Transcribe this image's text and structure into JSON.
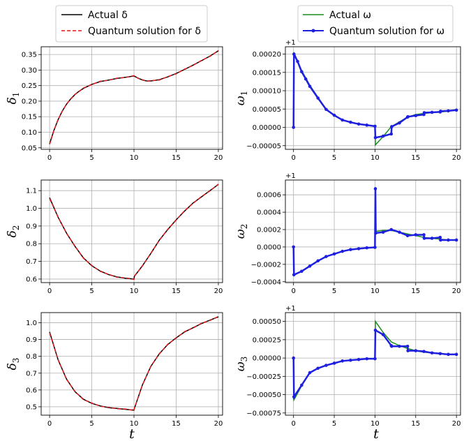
{
  "legends": {
    "left": [
      {
        "label": "Actual δ",
        "color": "#000000",
        "style": "solid"
      },
      {
        "label": "Quantum solution for δ",
        "color": "#e41a1c",
        "style": "dashed"
      }
    ],
    "right": [
      {
        "label": "Actual ω",
        "color": "#1a8c1a",
        "style": "solid"
      },
      {
        "label": "Quantum solution for ω",
        "color": "#1f1fe0",
        "style": "dots"
      }
    ]
  },
  "xlabel": "t",
  "chart_data": [
    {
      "type": "line",
      "ylabel": "δ",
      "ylabel_sub": "1",
      "xlim": [
        -1,
        20.5
      ],
      "ylim": [
        0.045,
        0.375
      ],
      "xticks": [
        0,
        5,
        10,
        15,
        20
      ],
      "xtick_labels": [
        "0",
        "5",
        "10",
        "15",
        "20"
      ],
      "yticks": [
        0.05,
        0.1,
        0.15,
        0.2,
        0.25,
        0.3,
        0.35
      ],
      "ytick_labels": [
        "0.05",
        "0.10",
        "0.15",
        "0.20",
        "0.25",
        "0.30",
        "0.35"
      ],
      "offset_text": "",
      "series": [
        {
          "name": "Actual δ",
          "color": "#000000",
          "x": [
            0,
            0.5,
            1,
            1.5,
            2,
            2.5,
            3,
            3.5,
            4,
            5,
            6,
            7,
            8,
            9,
            10,
            10.5,
            11,
            11.5,
            12,
            13,
            14,
            15,
            16,
            17,
            18,
            19,
            20
          ],
          "y": [
            0.063,
            0.105,
            0.14,
            0.168,
            0.19,
            0.207,
            0.221,
            0.232,
            0.241,
            0.254,
            0.263,
            0.268,
            0.273,
            0.277,
            0.281,
            0.274,
            0.268,
            0.265,
            0.265,
            0.269,
            0.278,
            0.289,
            0.302,
            0.316,
            0.33,
            0.345,
            0.362
          ]
        },
        {
          "name": "Quantum solution for δ",
          "color": "#e41a1c",
          "x": [
            0,
            0.5,
            1,
            1.5,
            2,
            2.5,
            3,
            3.5,
            4,
            5,
            6,
            7,
            8,
            9,
            10,
            10.5,
            11,
            11.5,
            12,
            13,
            14,
            15,
            16,
            17,
            18,
            19,
            20
          ],
          "y": [
            0.061,
            0.104,
            0.141,
            0.167,
            0.191,
            0.206,
            0.222,
            0.231,
            0.242,
            0.253,
            0.264,
            0.267,
            0.274,
            0.276,
            0.282,
            0.273,
            0.269,
            0.264,
            0.266,
            0.268,
            0.279,
            0.288,
            0.303,
            0.315,
            0.331,
            0.344,
            0.363
          ]
        }
      ]
    },
    {
      "type": "line",
      "ylabel": "ω",
      "ylabel_sub": "1",
      "xlim": [
        -1,
        20.5
      ],
      "ylim": [
        -6e-05,
        0.00022
      ],
      "xticks": [
        0,
        5,
        10,
        15,
        20
      ],
      "xtick_labels": [
        "0",
        "5",
        "10",
        "15",
        "20"
      ],
      "yticks": [
        -5e-05,
        0,
        5e-05,
        0.0001,
        0.00015,
        0.0002
      ],
      "ytick_labels": [
        "−0.00005",
        "0.00000",
        "0.00005",
        "0.00010",
        "0.00015",
        "0.00020"
      ],
      "offset_text": "+1",
      "series": [
        {
          "name": "Actual ω",
          "color": "#1a8c1a",
          "x": [
            0,
            0.05,
            0.5,
            1,
            1.5,
            2,
            3,
            4,
            5,
            6,
            7,
            8,
            9,
            10,
            10.05,
            11,
            12,
            13,
            14,
            15,
            16,
            17,
            18,
            19,
            20
          ],
          "y": [
            0,
            0.000205,
            0.00018,
            0.000155,
            0.000135,
            0.000115,
            8.2e-05,
            5e-05,
            3.4e-05,
            2e-05,
            1.4e-05,
            9e-06,
            6e-06,
            4e-06,
            -4.8e-05,
            -2.5e-05,
            2e-06,
            1.5e-05,
            2.8e-05,
            3.5e-05,
            3.8e-05,
            4e-05,
            4.2e-05,
            4.4e-05,
            4.8e-05
          ]
        },
        {
          "name": "Quantum solution for ω",
          "color": "#1f1fe0",
          "x": [
            0,
            0.05,
            0.5,
            1,
            1.5,
            2,
            3,
            4,
            5,
            6,
            7,
            8,
            9,
            10,
            10.05,
            11,
            12,
            12.05,
            13,
            14,
            14.05,
            15,
            16,
            16.05,
            17,
            18,
            18.05,
            19,
            20
          ],
          "y": [
            0,
            0.0002,
            0.00018,
            0.000152,
            0.000132,
            0.000112,
            8e-05,
            4.9e-05,
            3.3e-05,
            2e-05,
            1.4e-05,
            9e-06,
            6e-06,
            3e-06,
            -2.8e-05,
            -2.4e-05,
            -1.8e-05,
            2e-06,
            1.2e-05,
            2.8e-05,
            2.9e-05,
            3.2e-05,
            3.5e-05,
            4e-05,
            4.1e-05,
            4.2e-05,
            4.4e-05,
            4.5e-05,
            4.7e-05
          ]
        }
      ]
    },
    {
      "type": "line",
      "ylabel": "δ",
      "ylabel_sub": "2",
      "xlim": [
        -1,
        20.5
      ],
      "ylim": [
        0.58,
        1.16
      ],
      "xticks": [
        0,
        5,
        10,
        15,
        20
      ],
      "xtick_labels": [
        "0",
        "5",
        "10",
        "15",
        "20"
      ],
      "yticks": [
        0.6,
        0.7,
        0.8,
        0.9,
        1.0,
        1.1
      ],
      "ytick_labels": [
        "0.6",
        "0.7",
        "0.8",
        "0.9",
        "1.0",
        "1.1"
      ],
      "offset_text": "",
      "series": [
        {
          "name": "Actual δ",
          "color": "#000000",
          "x": [
            0,
            1,
            2,
            3,
            4,
            5,
            6,
            7,
            8,
            9,
            10,
            10.05,
            11,
            12,
            13,
            14,
            15,
            16,
            17,
            18,
            19,
            20
          ],
          "y": [
            1.06,
            0.95,
            0.86,
            0.785,
            0.72,
            0.675,
            0.645,
            0.625,
            0.612,
            0.605,
            0.6,
            0.615,
            0.675,
            0.745,
            0.82,
            0.88,
            0.935,
            0.985,
            1.03,
            1.065,
            1.1,
            1.135
          ]
        },
        {
          "name": "Quantum solution for δ",
          "color": "#e41a1c",
          "x": [
            0,
            1,
            2,
            3,
            4,
            5,
            6,
            7,
            8,
            9,
            10,
            10.05,
            11,
            12,
            13,
            14,
            15,
            16,
            17,
            18,
            19,
            20
          ],
          "y": [
            1.055,
            0.952,
            0.858,
            0.787,
            0.718,
            0.677,
            0.643,
            0.627,
            0.61,
            0.607,
            0.598,
            0.617,
            0.673,
            0.747,
            0.818,
            0.882,
            0.933,
            0.987,
            1.028,
            1.067,
            1.098,
            1.137
          ]
        }
      ]
    },
    {
      "type": "line",
      "ylabel": "ω",
      "ylabel_sub": "2",
      "xlim": [
        -1,
        20.5
      ],
      "ylim": [
        -0.00041,
        0.00077
      ],
      "xticks": [
        0,
        5,
        10,
        15,
        20
      ],
      "xtick_labels": [
        "0",
        "5",
        "10",
        "15",
        "20"
      ],
      "yticks": [
        -0.0004,
        -0.0002,
        0,
        0.0002,
        0.0004,
        0.0006
      ],
      "ytick_labels": [
        "−0.0004",
        "−0.0002",
        "0.0000",
        "0.0002",
        "0.0004",
        "0.0006"
      ],
      "offset_text": "+1",
      "series": [
        {
          "name": "Actual ω",
          "color": "#1a8c1a",
          "x": [
            0,
            0.05,
            1,
            2,
            3,
            4,
            5,
            6,
            7,
            8,
            9,
            10,
            10.05,
            11,
            12,
            13,
            14,
            15,
            16,
            17,
            18,
            19,
            20
          ],
          "y": [
            0,
            -0.00032,
            -0.00028,
            -0.00022,
            -0.00016,
            -0.00011,
            -8e-05,
            -5e-05,
            -3e-05,
            -2e-05,
            -1e-05,
            -5e-06,
            0.00018,
            0.00019,
            0.00019,
            0.00017,
            0.00015,
            0.00013,
            0.00011,
            0.0001,
            9e-05,
            8e-05,
            8e-05
          ]
        },
        {
          "name": "Quantum solution for ω",
          "color": "#1f1fe0",
          "x": [
            0,
            0.05,
            1,
            2,
            3,
            4,
            5,
            6,
            7,
            8,
            9,
            10,
            10.05,
            10.1,
            11,
            12,
            13,
            14,
            15,
            16,
            16.05,
            17,
            18,
            18.05,
            19,
            20
          ],
          "y": [
            0,
            -0.00032,
            -0.00028,
            -0.00022,
            -0.00016,
            -0.00011,
            -8e-05,
            -5e-05,
            -3e-05,
            -2e-05,
            -1e-05,
            -5e-06,
            0.00067,
            0.00016,
            0.00017,
            0.0002,
            0.00017,
            0.00013,
            0.00014,
            0.00014,
            0.0001,
            0.0001,
            0.00011,
            8e-05,
            8e-05,
            8e-05
          ]
        }
      ]
    },
    {
      "type": "line",
      "ylabel": "δ",
      "ylabel_sub": "3",
      "xlim": [
        -1,
        20.5
      ],
      "ylim": [
        0.45,
        1.06
      ],
      "xticks": [
        0,
        5,
        10,
        15,
        20
      ],
      "xtick_labels": [
        "0",
        "5",
        "10",
        "15",
        "20"
      ],
      "yticks": [
        0.5,
        0.6,
        0.7,
        0.8,
        0.9,
        1.0
      ],
      "ytick_labels": [
        "0.5",
        "0.6",
        "0.7",
        "0.8",
        "0.9",
        "1.0"
      ],
      "offset_text": "",
      "series": [
        {
          "name": "Actual δ",
          "color": "#000000",
          "x": [
            0,
            1,
            2,
            3,
            4,
            5,
            6,
            7,
            8,
            9,
            10,
            10.05,
            11,
            12,
            13,
            14,
            15,
            16,
            17,
            18,
            19,
            20
          ],
          "y": [
            0.945,
            0.78,
            0.665,
            0.59,
            0.545,
            0.52,
            0.505,
            0.495,
            0.49,
            0.485,
            0.48,
            0.49,
            0.63,
            0.74,
            0.815,
            0.87,
            0.91,
            0.945,
            0.97,
            0.995,
            1.015,
            1.035
          ]
        },
        {
          "name": "Quantum solution for δ",
          "color": "#e41a1c",
          "x": [
            0,
            1,
            2,
            3,
            4,
            5,
            6,
            7,
            8,
            9,
            10,
            10.05,
            11,
            12,
            13,
            14,
            15,
            16,
            17,
            18,
            19,
            20
          ],
          "y": [
            0.94,
            0.782,
            0.663,
            0.592,
            0.543,
            0.522,
            0.503,
            0.497,
            0.488,
            0.487,
            0.478,
            0.492,
            0.628,
            0.742,
            0.813,
            0.872,
            0.908,
            0.947,
            0.968,
            0.997,
            1.013,
            1.037
          ]
        }
      ]
    },
    {
      "type": "line",
      "ylabel": "ω",
      "ylabel_sub": "3",
      "xlim": [
        -1,
        20.5
      ],
      "ylim": [
        -0.00078,
        0.00062
      ],
      "xticks": [
        0,
        5,
        10,
        15,
        20
      ],
      "xtick_labels": [
        "0",
        "5",
        "10",
        "15",
        "20"
      ],
      "yticks": [
        -0.00075,
        -0.0005,
        -0.00025,
        0,
        0.00025,
        0.0005
      ],
      "ytick_labels": [
        "−0.00075",
        "−0.00050",
        "−0.00025",
        "0.00000",
        "0.00025",
        "0.00050"
      ],
      "offset_text": "+1",
      "series": [
        {
          "name": "Actual ω",
          "color": "#1a8c1a",
          "x": [
            0,
            0.05,
            1,
            2,
            3,
            4,
            5,
            6,
            7,
            8,
            9,
            10,
            10.05,
            11,
            12,
            13,
            14,
            15,
            16,
            17,
            18,
            19,
            20
          ],
          "y": [
            0,
            -0.00057,
            -0.00038,
            -0.0002,
            -0.00014,
            -0.0001,
            -7e-05,
            -4e-05,
            -3e-05,
            -2e-05,
            -1e-05,
            -5e-06,
            0.0005,
            0.00035,
            0.00022,
            0.00017,
            0.00013,
            0.0001,
            8e-05,
            7e-05,
            6e-05,
            5e-05,
            5e-05
          ]
        },
        {
          "name": "Quantum solution for ω",
          "color": "#1f1fe0",
          "x": [
            0,
            0.05,
            1,
            2,
            3,
            4,
            5,
            6,
            7,
            8,
            9,
            10,
            10.05,
            11,
            12,
            12.05,
            13,
            14,
            14.05,
            15,
            16,
            17,
            18,
            19,
            20
          ],
          "y": [
            0,
            -0.00053,
            -0.00037,
            -0.0002,
            -0.00014,
            -0.0001,
            -7e-05,
            -4e-05,
            -3e-05,
            -2e-05,
            -1e-05,
            -1e-05,
            0.00038,
            0.00032,
            0.00017,
            0.00016,
            0.00016,
            0.00016,
            0.0001,
            0.0001,
            9e-05,
            7e-05,
            6e-05,
            5e-05,
            5e-05
          ]
        }
      ]
    }
  ]
}
